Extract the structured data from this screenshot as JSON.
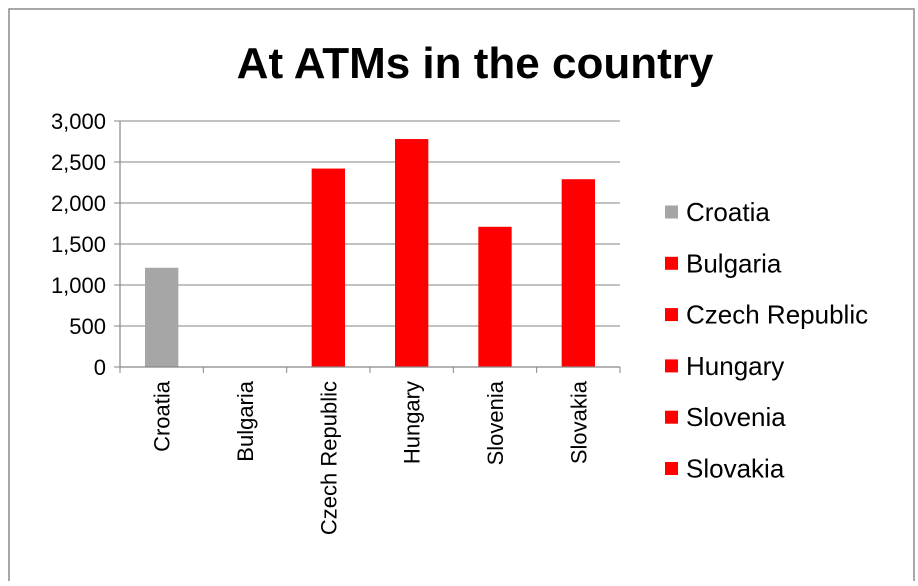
{
  "chart_data": {
    "type": "bar",
    "title": "At ATMs in the country",
    "categories": [
      "Croatia",
      "Bulgaria",
      "Czech Republic",
      "Hungary",
      "Slovenia",
      "Slovakia"
    ],
    "values": [
      1210,
      0,
      2420,
      2780,
      1710,
      2290
    ],
    "colors": [
      "#a6a6a6",
      "#ff0000",
      "#ff0000",
      "#ff0000",
      "#ff0000",
      "#ff0000"
    ],
    "ylim": [
      0,
      3000
    ],
    "yticks": [
      0,
      500,
      1000,
      1500,
      2000,
      2500,
      3000
    ],
    "ytick_labels": [
      "0",
      "500",
      "1,000",
      "1,500",
      "2,000",
      "2,500",
      "3,000"
    ],
    "grid": true,
    "legend": {
      "position": "right",
      "entries": [
        {
          "label": "Croatia",
          "color": "#a6a6a6"
        },
        {
          "label": "Bulgaria",
          "color": "#ff0000"
        },
        {
          "label": "Czech Republic",
          "color": "#ff0000"
        },
        {
          "label": "Hungary",
          "color": "#ff0000"
        },
        {
          "label": "Slovenia",
          "color": "#ff0000"
        },
        {
          "label": "Slovakia",
          "color": "#ff0000"
        }
      ]
    }
  }
}
